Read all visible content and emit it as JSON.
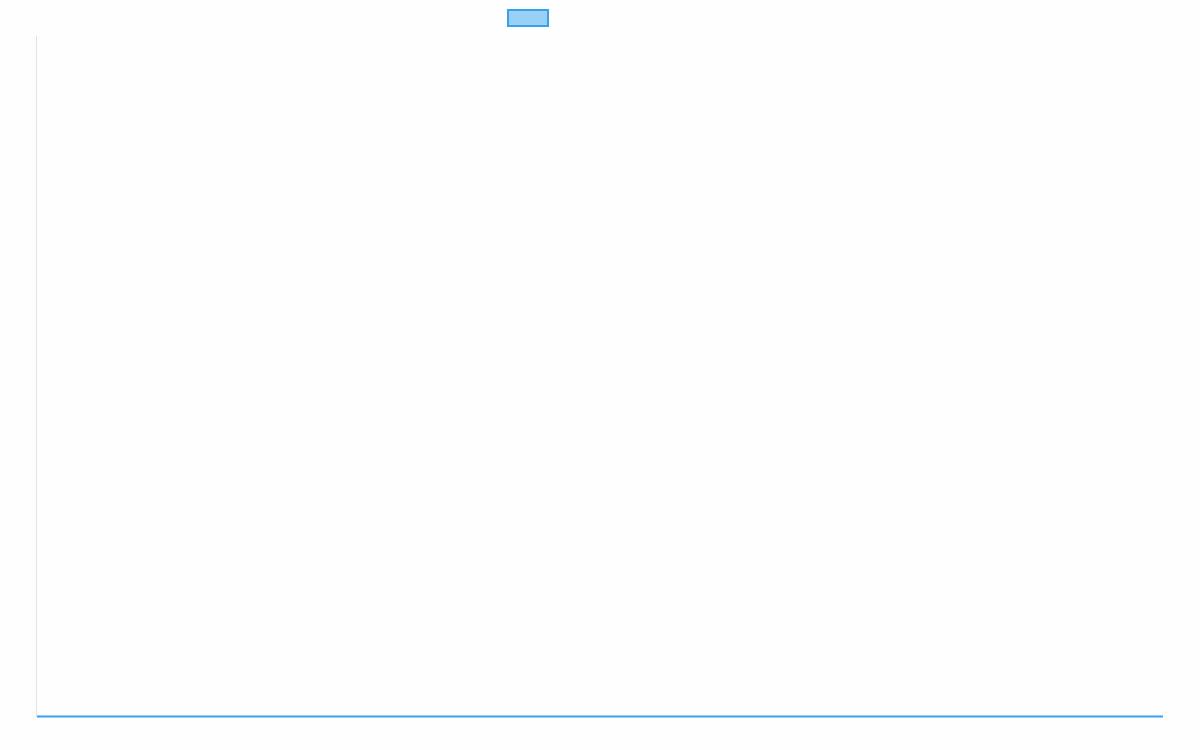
{
  "chart_data": {
    "type": "line",
    "title": "",
    "xlabel": "",
    "ylabel": "",
    "grid": false,
    "legend": "top",
    "series": [
      {
        "color": "#36a2eb",
        "fill": "#9ad0f5",
        "values": []
      }
    ]
  }
}
